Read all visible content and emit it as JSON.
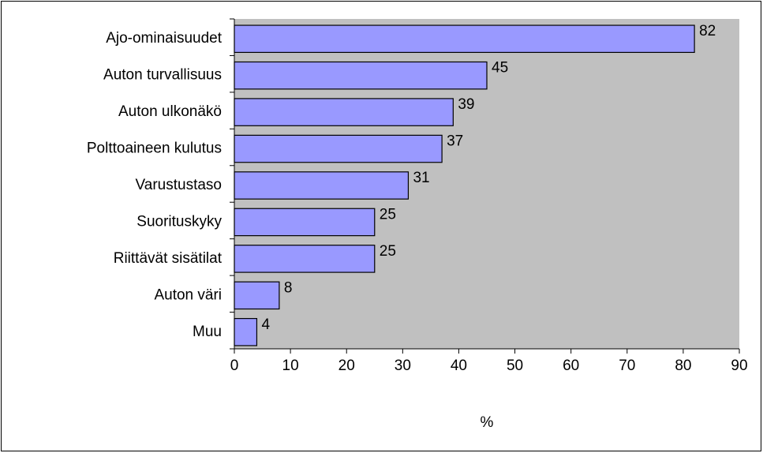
{
  "chart_data": {
    "type": "bar",
    "orientation": "horizontal",
    "categories": [
      "Ajo-ominaisuudet",
      "Auton turvallisuus",
      "Auton ulkonäkö",
      "Polttoaineen kulutus",
      "Varustustaso",
      "Suorituskyky",
      "Riittävät sisätilat",
      "Auton väri",
      "Muu"
    ],
    "values": [
      82,
      45,
      39,
      37,
      31,
      25,
      25,
      8,
      4
    ],
    "color": "#9999ff",
    "plot_background": "#c0c0c0",
    "x_label": "%",
    "xlim": [
      0,
      90
    ],
    "xticks": [
      0,
      10,
      20,
      30,
      40,
      50,
      60,
      70,
      80,
      90
    ],
    "grid": false
  }
}
